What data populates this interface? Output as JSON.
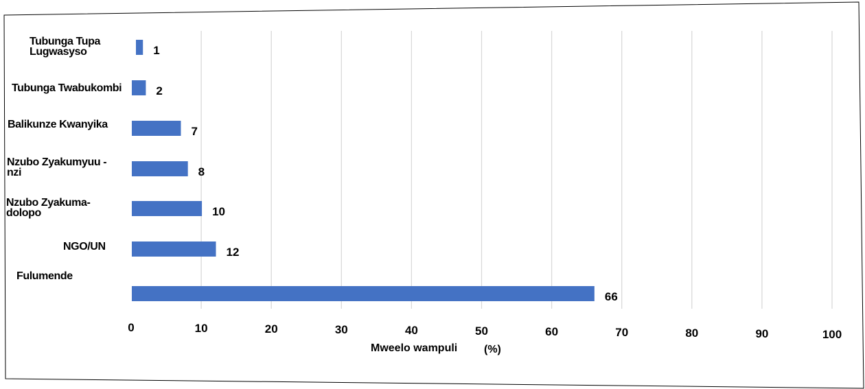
{
  "chart_data": {
    "type": "bar",
    "orientation": "horizontal",
    "categories": [
      "Tubunga Tupa\nLugwasyso",
      "Tubunga Twabukombi",
      "Balikunze Kwanyika",
      "Nzubo Zyakumyuu -\nnzi",
      "Nzubo Zyakuma-\ndolopo",
      "NGO/UN",
      "Fulumende"
    ],
    "values": [
      1,
      2,
      7,
      8,
      10,
      12,
      66
    ],
    "value_labels": [
      "1",
      "2",
      "7",
      "8",
      "10",
      "12",
      "66"
    ],
    "xlim": [
      0,
      100
    ],
    "xticks": [
      "0",
      "10",
      "20",
      "30",
      "40",
      "50",
      "60",
      "70",
      "80",
      "90",
      "100"
    ],
    "xlabel": "Mweelo wampuli",
    "xlabel_unit": "(%)",
    "ylabel": "",
    "title": "",
    "grid": "vertical",
    "legend": "none",
    "bar_color": "#4472C4",
    "grid_color": "#d9d9d9",
    "frame_color": "#000000"
  }
}
